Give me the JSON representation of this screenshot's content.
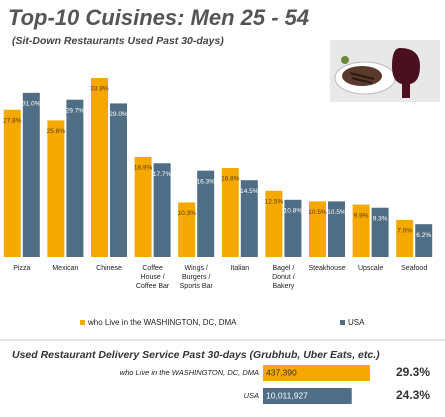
{
  "chart_data": [
    {
      "type": "bar",
      "title": "Top-10 Cuisines:  Men 25 - 54",
      "subtitle": "(Sit-Down Restaurants Used Past 30-days)",
      "categories": [
        "Pizza",
        "Mexican",
        "Chinese",
        "Coffee House / Coffee Bar",
        "Wings / Burgers / Sports Bar",
        "Italian",
        "Bagel / Donut / Bakery",
        "Steakhouse",
        "Upscale",
        "Seafood"
      ],
      "series": [
        {
          "name": "who Live in the WASHINGTON, DC, DMA",
          "color": "#f5a800",
          "values": [
            27.8,
            25.8,
            33.8,
            18.9,
            10.3,
            16.8,
            12.5,
            10.5,
            9.9,
            7.0
          ],
          "value_labels": [
            "27.8%",
            "25.8%",
            "33.8%",
            "18.9%",
            "10.3%",
            "16.8%",
            "12.5%",
            "10.5%",
            "9.9%",
            "7.0%"
          ]
        },
        {
          "name": "USA",
          "color": "#4f6e86",
          "values": [
            31.0,
            29.7,
            29.0,
            17.7,
            16.3,
            14.5,
            10.8,
            10.5,
            9.3,
            6.2
          ],
          "value_labels": [
            "31.0%",
            "29.7%",
            "29.0%",
            "17.7%",
            "16.3%",
            "14.5%",
            "10.8%",
            "10.5%",
            "9.3%",
            "6.2%"
          ]
        }
      ]
    },
    {
      "type": "hbar",
      "title": "Used Restaurant Delivery Service Past 30-days (Grubhub, Uber Eats, etc.)",
      "categories": [
        "who Live in the WASHINGTON, DC, DMA",
        "USA"
      ],
      "colors": [
        "#f5a800",
        "#4f6e86"
      ],
      "values": [
        29.3,
        24.3
      ],
      "value_labels": [
        "29.3%",
        "24.3%"
      ],
      "counts": [
        437390,
        10011927
      ],
      "count_labels": [
        "437,390",
        "10,011,927"
      ]
    }
  ]
}
